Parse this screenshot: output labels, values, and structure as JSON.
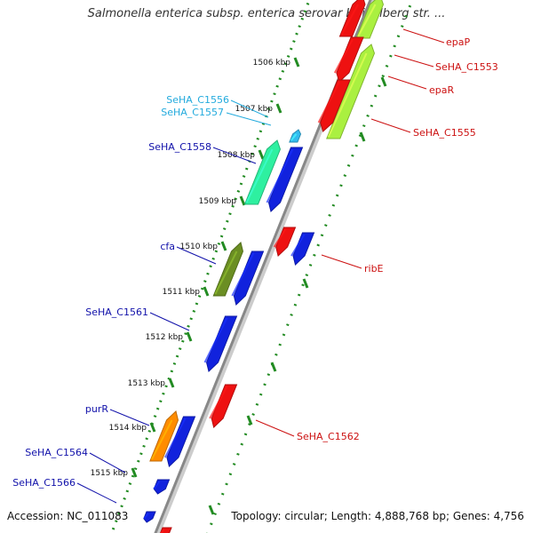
{
  "title": "Salmonella enterica subsp. enterica serovar Heidelberg str. ...",
  "footer": {
    "accession": "Accession: NC_011083",
    "topology": "Topology: circular; Length: 4,888,768 bp; Genes: 4,756"
  },
  "colors": {
    "red": "#ee1111",
    "blue": "#1122dd",
    "lime": "#aaf040",
    "teal": "#2ef0a0",
    "olive": "#6b8e23",
    "orange": "#ff8c00",
    "cyan": "#33bbee",
    "label_red": "#cc1111",
    "label_blue": "#1111aa",
    "label_cyan": "#22aadd",
    "backbone": "#888888",
    "ruler": "#228B22"
  },
  "ruler_ticks": [
    {
      "label": "1506 kbp"
    },
    {
      "label": "1507 kbp"
    },
    {
      "label": "1508 kbp"
    },
    {
      "label": "1509 kbp"
    },
    {
      "label": "1510 kbp"
    },
    {
      "label": "1511 kbp"
    },
    {
      "label": "1512 kbp"
    },
    {
      "label": "1513 kbp"
    },
    {
      "label": "1514 kbp"
    },
    {
      "label": "1515 kbp"
    }
  ],
  "gene_labels": [
    {
      "name": "epaP",
      "color": "label_red"
    },
    {
      "name": "SeHA_C1553",
      "color": "label_red"
    },
    {
      "name": "epaR",
      "color": "label_red"
    },
    {
      "name": "SeHA_C1555",
      "color": "label_red"
    },
    {
      "name": "ribE",
      "color": "label_red"
    },
    {
      "name": "SeHA_C1562",
      "color": "label_red"
    },
    {
      "name": "SeHA_C1556",
      "color": "label_cyan"
    },
    {
      "name": "SeHA_C1557",
      "color": "label_cyan"
    },
    {
      "name": "SeHA_C1558",
      "color": "label_blue"
    },
    {
      "name": "cfa",
      "color": "label_blue"
    },
    {
      "name": "SeHA_C1561",
      "color": "label_blue"
    },
    {
      "name": "purR",
      "color": "label_blue"
    },
    {
      "name": "SeHA_C1564",
      "color": "label_blue"
    },
    {
      "name": "SeHA_C1566",
      "color": "label_blue"
    }
  ]
}
